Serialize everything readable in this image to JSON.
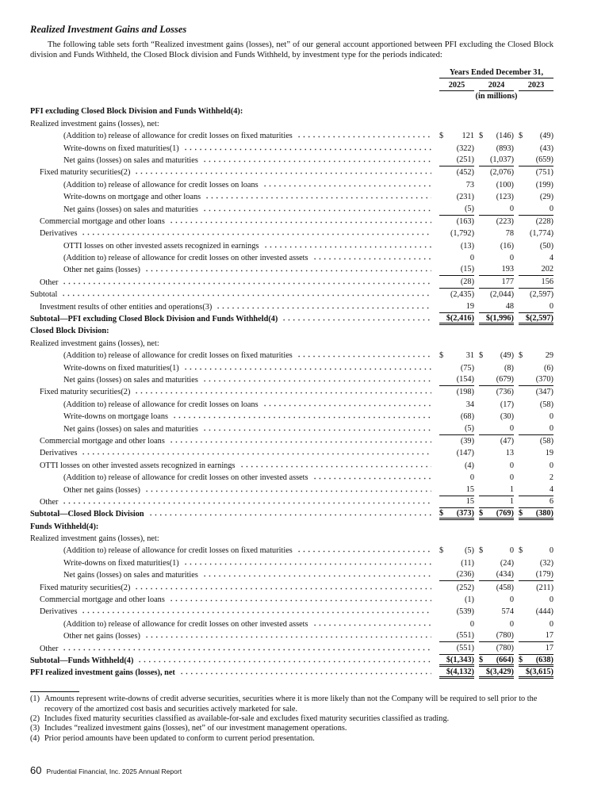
{
  "header": {
    "title": "Realized Investment Gains and Losses",
    "intro": "The following table sets forth “Realized investment gains (losses), net” of our general account apportioned between PFI excluding the Closed Block division and Funds Withheld, the Closed Block division and Funds Withheld, by investment type for the periods indicated:"
  },
  "table": {
    "period": "Years Ended December 31,",
    "years": [
      "2025",
      "2024",
      "2023"
    ],
    "units": "(in millions)",
    "rows": [
      {
        "label": "PFI excluding Closed Block Division and Funds Withheld(4):",
        "bold": true
      },
      {
        "label": "Realized investment gains (losses), net:",
        "level": 0
      },
      {
        "label": "(Addition to) release of allowance for credit losses on fixed maturities",
        "level": 2,
        "cells": [
          {
            "sign": "$",
            "value": "121"
          },
          {
            "sign": "$",
            "value": "(146)"
          },
          {
            "sign": "$",
            "value": "(49)"
          }
        ]
      },
      {
        "label": "Write-downs on fixed maturities(1)",
        "level": 2,
        "cells": [
          "(322)",
          "(893)",
          "(43)"
        ]
      },
      {
        "label": "Net gains (losses) on sales and maturities",
        "level": 2,
        "cells": [
          "(251)",
          "(1,037)",
          "(659)"
        ],
        "rule": "single"
      },
      {
        "label": "Fixed maturity securities(2)",
        "level": 1,
        "cells": [
          "(452)",
          "(2,076)",
          "(751)"
        ]
      },
      {
        "label": "(Addition to) release of allowance for credit losses on loans",
        "level": 2,
        "cells": [
          "73",
          "(100)",
          "(199)"
        ]
      },
      {
        "label": "Write-downs on mortgage and other loans",
        "level": 2,
        "cells": [
          "(231)",
          "(123)",
          "(29)"
        ]
      },
      {
        "label": "Net gains (losses) on sales and maturities",
        "level": 2,
        "cells": [
          "(5)",
          "0",
          "0"
        ],
        "rule": "single"
      },
      {
        "label": "Commercial mortgage and other loans",
        "level": 1,
        "cells": [
          "(163)",
          "(223)",
          "(228)"
        ]
      },
      {
        "label": "Derivatives",
        "level": 1,
        "cells": [
          "(1,792)",
          "78",
          "(1,774)"
        ]
      },
      {
        "label": "OTTI losses on other invested assets recognized in earnings",
        "level": 2,
        "cells": [
          "(13)",
          "(16)",
          "(50)"
        ]
      },
      {
        "label": "(Addition to) release of allowance for credit losses on other invested assets",
        "level": 2,
        "cells": [
          "0",
          "0",
          "4"
        ]
      },
      {
        "label": "Other net gains (losses)",
        "level": 2,
        "cells": [
          "(15)",
          "193",
          "202"
        ],
        "rule": "single"
      },
      {
        "label": "Other",
        "level": 1,
        "cells": [
          "(28)",
          "177",
          "156"
        ],
        "rule": "single"
      },
      {
        "label": "Subtotal",
        "level": 0,
        "cells": [
          "(2,435)",
          "(2,044)",
          "(2,597)"
        ]
      },
      {
        "label": "Investment results of other entities and operations(3)",
        "level": 1,
        "cells": [
          "19",
          "48",
          "0"
        ],
        "rule": "single"
      },
      {
        "label": "Subtotal—PFI excluding Closed Block Division and Funds Withheld(4)",
        "bold": true,
        "level": 0,
        "cells": [
          "$(2,416)",
          "$(1,996)",
          "$(2,597)"
        ],
        "rule": "double"
      },
      {
        "label": "Closed Block Division:",
        "bold": true
      },
      {
        "label": "Realized investment gains (losses), net:",
        "level": 0
      },
      {
        "label": "(Addition to) release of allowance for credit losses on fixed maturities",
        "level": 2,
        "cells": [
          {
            "sign": "$",
            "value": "31"
          },
          {
            "sign": "$",
            "value": "(49)"
          },
          {
            "sign": "$",
            "value": "29"
          }
        ]
      },
      {
        "label": "Write-downs on fixed maturities(1)",
        "level": 2,
        "cells": [
          "(75)",
          "(8)",
          "(6)"
        ]
      },
      {
        "label": "Net gains (losses) on sales and maturities",
        "level": 2,
        "cells": [
          "(154)",
          "(679)",
          "(370)"
        ],
        "rule": "single"
      },
      {
        "label": "Fixed maturity securities(2)",
        "level": 1,
        "cells": [
          "(198)",
          "(736)",
          "(347)"
        ]
      },
      {
        "label": "(Addition to) release of allowance for credit losses on loans",
        "level": 2,
        "cells": [
          "34",
          "(17)",
          "(58)"
        ]
      },
      {
        "label": "Write-downs on mortgage loans",
        "level": 2,
        "cells": [
          "(68)",
          "(30)",
          "0"
        ]
      },
      {
        "label": "Net gains (losses) on sales and maturities",
        "level": 2,
        "cells": [
          "(5)",
          "0",
          "0"
        ],
        "rule": "single"
      },
      {
        "label": "Commercial mortgage and other loans",
        "level": 1,
        "cells": [
          "(39)",
          "(47)",
          "(58)"
        ]
      },
      {
        "label": "Derivatives",
        "level": 1,
        "cells": [
          "(147)",
          "13",
          "19"
        ]
      },
      {
        "label": "OTTI losses on other invested assets recognized in earnings",
        "level": 1,
        "cells": [
          "(4)",
          "0",
          "0"
        ]
      },
      {
        "label": "(Addition to) release of allowance for credit losses on other invested assets",
        "level": 2,
        "cells": [
          "0",
          "0",
          "2"
        ]
      },
      {
        "label": "Other net gains (losses)",
        "level": 2,
        "cells": [
          "15",
          "1",
          "4"
        ],
        "rule": "single"
      },
      {
        "label": "Other",
        "level": 1,
        "cells": [
          "15",
          "1",
          "6"
        ],
        "rule": "single"
      },
      {
        "label": "Subtotal—Closed Block Division",
        "bold": true,
        "level": 0,
        "cells": [
          {
            "sign": "$",
            "value": "(373)"
          },
          {
            "sign": "$",
            "value": "(769)"
          },
          {
            "sign": "$",
            "value": "(380)"
          }
        ],
        "rule": "double"
      },
      {
        "label": "Funds Withheld(4):",
        "bold": true
      },
      {
        "label": "Realized investment gains (losses), net:",
        "level": 0
      },
      {
        "label": "(Addition to) release of allowance for credit losses on fixed maturities",
        "level": 2,
        "cells": [
          {
            "sign": "$",
            "value": "(5)"
          },
          {
            "sign": "$",
            "value": "0"
          },
          {
            "sign": "$",
            "value": "0"
          }
        ]
      },
      {
        "label": "Write-downs on fixed maturities(1)",
        "level": 2,
        "cells": [
          "(11)",
          "(24)",
          "(32)"
        ]
      },
      {
        "label": "Net gains (losses) on sales and maturities",
        "level": 2,
        "cells": [
          "(236)",
          "(434)",
          "(179)"
        ],
        "rule": "single"
      },
      {
        "label": "Fixed maturity securities(2)",
        "level": 1,
        "cells": [
          "(252)",
          "(458)",
          "(211)"
        ]
      },
      {
        "label": "Commercial mortgage and other loans",
        "level": 1,
        "cells": [
          "(1)",
          "0",
          "0"
        ]
      },
      {
        "label": "Derivatives",
        "level": 1,
        "cells": [
          "(539)",
          "574",
          "(444)"
        ]
      },
      {
        "label": "(Addition to) release of allowance for credit losses on other invested assets",
        "level": 2,
        "cells": [
          "0",
          "0",
          "0"
        ]
      },
      {
        "label": "Other net gains (losses)",
        "level": 2,
        "cells": [
          "(551)",
          "(780)",
          "17"
        ],
        "rule": "single"
      },
      {
        "label": "Other",
        "level": 1,
        "cells": [
          "(551)",
          "(780)",
          "17"
        ],
        "rule": "single"
      },
      {
        "label": "Subtotal—Funds Withheld(4)",
        "bold": true,
        "level": 0,
        "cells": [
          "$(1,343)",
          {
            "sign": "$",
            "value": "(664)"
          },
          {
            "sign": "$",
            "value": "(638)"
          }
        ],
        "rule": "double"
      },
      {
        "label": "PFI realized investment gains (losses), net",
        "bold": true,
        "level": 0,
        "cells": [
          "$(4,132)",
          "$(3,429)",
          "$(3,615)"
        ],
        "rule": "double"
      }
    ]
  },
  "footnotes": [
    {
      "mark": "(1)",
      "text": "Amounts represent write-downs of credit adverse securities, securities where it is more likely than not the Company will be required to sell prior to the recovery of the amortized cost basis and securities actively marketed for sale."
    },
    {
      "mark": "(2)",
      "text": "Includes fixed maturity securities classified as available-for-sale and excludes fixed maturity securities classified as trading."
    },
    {
      "mark": "(3)",
      "text": "Includes “realized investment gains (losses), net” of our investment management operations."
    },
    {
      "mark": "(4)",
      "text": "Prior period amounts have been updated to conform to current period presentation."
    }
  ],
  "footer": {
    "page": "60",
    "text": "Prudential Financial, Inc. 2025 Annual Report"
  }
}
